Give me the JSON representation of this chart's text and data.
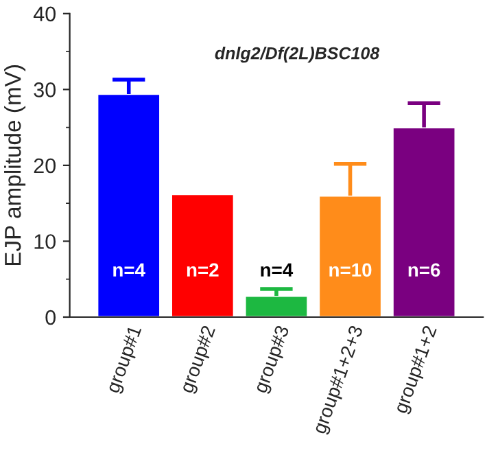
{
  "chart_data": {
    "type": "bar",
    "title": "dnlg2/Df(2L)BSC108",
    "ylabel": "EJP amplitude (mV)",
    "categories": [
      "group#1",
      "group#2",
      "group#3",
      "group#1+2+3",
      "group#1+2"
    ],
    "values": [
      29.4,
      16.2,
      2.8,
      16.0,
      25.0
    ],
    "colors": [
      "#0000ff",
      "#ff0000",
      "#1db841",
      "#ff8c1a",
      "#7a0080"
    ],
    "errors": [
      [
        29.4,
        31.3
      ],
      null,
      [
        2.8,
        3.7
      ],
      [
        16.0,
        20.2
      ],
      [
        25.0,
        28.2
      ]
    ],
    "annotations": [
      "n=4",
      "n=2",
      "n=4",
      "n=10",
      "n=6"
    ],
    "ylim": [
      0,
      40
    ],
    "yticks": [
      0,
      10,
      20,
      30,
      40
    ],
    "grid": false,
    "legend": false
  }
}
